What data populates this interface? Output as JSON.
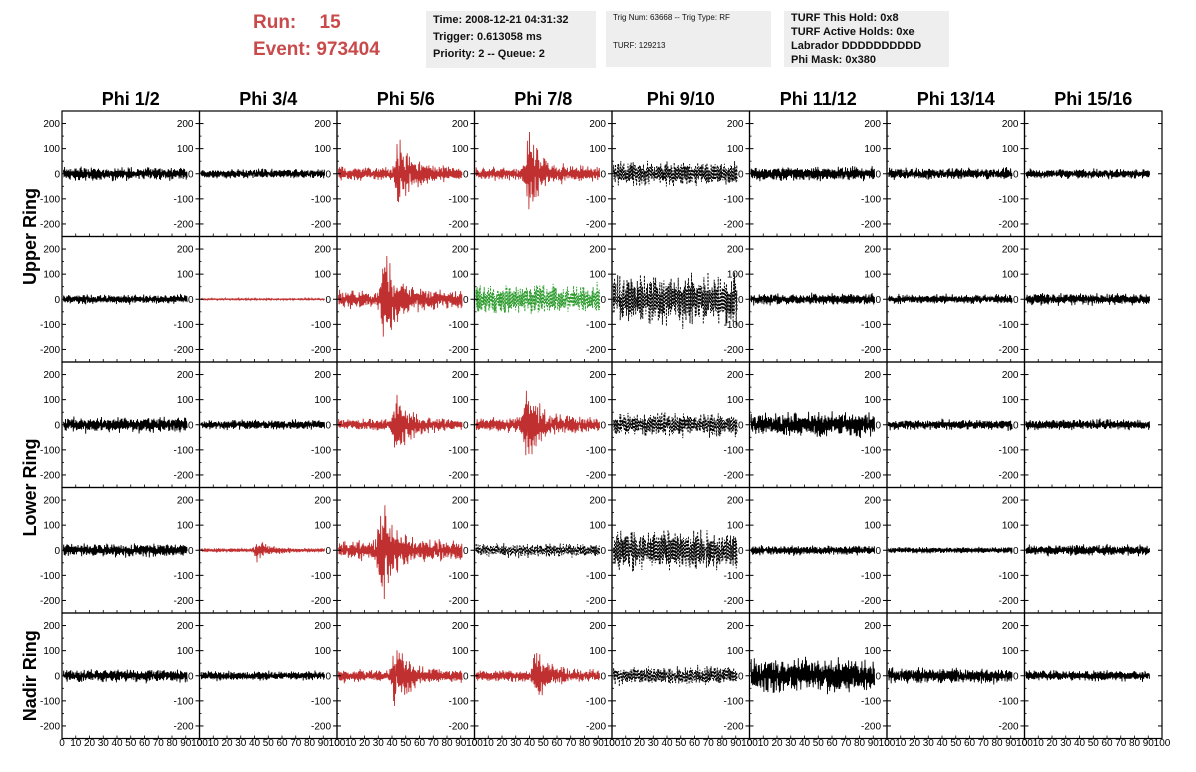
{
  "header": {
    "run_label": "Run:",
    "run_value": "15",
    "event_label": "Event:",
    "event_value": "973404",
    "time": "Time: 2008-12-21 04:31:32",
    "trigger": "Trigger: 0.613058 ms",
    "priority": "Priority: 2 -- Queue: 2",
    "trig_num": "Trig Num: 63668 -- Trig Type: RF",
    "turf": "TURF: 129213",
    "turf_this_hold": "TURF This Hold: 0x8",
    "turf_active_holds": "TURF Active Holds: 0xe",
    "labrador": "Labrador DDDDDDDDDD",
    "phi_mask": "Phi Mask: 0x380"
  },
  "colors": {
    "black": "#000000",
    "red": "#c03030",
    "green": "#2a9a2a",
    "title_red": "#c84a4a"
  },
  "chart_data": {
    "type": "line",
    "columns": [
      "Phi 1/2",
      "Phi 3/4",
      "Phi 5/6",
      "Phi 7/8",
      "Phi 9/10",
      "Phi 11/12",
      "Phi 13/14",
      "Phi 15/16"
    ],
    "ring_labels": [
      "Upper Ring",
      "Lower Ring",
      "Nadir Ring"
    ],
    "rows": 5,
    "ytick_labels": [
      "200",
      "100",
      "0",
      "-100",
      "-200"
    ],
    "xtick_labels": [
      "0",
      "10",
      "20",
      "30",
      "40",
      "50",
      "60",
      "70",
      "80",
      "90",
      "100"
    ],
    "xlim": [
      0,
      100
    ],
    "ylim": [
      -250,
      250
    ],
    "grid": false,
    "panels": [
      [
        {
          "style": "black",
          "amp": 25,
          "env": "noise"
        },
        {
          "style": "black",
          "amp": 18,
          "env": "noise"
        },
        {
          "style": "red",
          "amp": 130,
          "env": "burst",
          "peak": 45
        },
        {
          "style": "red",
          "amp": 130,
          "env": "burst",
          "peak": 40
        },
        {
          "style": "dashed",
          "amp": 45,
          "env": "noise"
        },
        {
          "style": "black",
          "amp": 28,
          "env": "noise"
        },
        {
          "style": "black",
          "amp": 22,
          "env": "noise"
        },
        {
          "style": "black",
          "amp": 18,
          "env": "noise"
        }
      ],
      [
        {
          "style": "black",
          "amp": 18,
          "env": "noise"
        },
        {
          "style": "red",
          "amp": 3,
          "env": "flat"
        },
        {
          "style": "red",
          "amp": 170,
          "env": "burst",
          "peak": 35
        },
        {
          "style": "green",
          "amp": 55,
          "env": "noise"
        },
        {
          "style": "dashed",
          "amp": 95,
          "env": "noise"
        },
        {
          "style": "black",
          "amp": 22,
          "env": "noise"
        },
        {
          "style": "black",
          "amp": 18,
          "env": "noise"
        },
        {
          "style": "black",
          "amp": 22,
          "env": "noise"
        }
      ],
      [
        {
          "style": "black",
          "amp": 28,
          "env": "noise"
        },
        {
          "style": "black",
          "amp": 18,
          "env": "noise"
        },
        {
          "style": "red",
          "amp": 110,
          "env": "burst",
          "peak": 43
        },
        {
          "style": "red",
          "amp": 140,
          "env": "burst",
          "peak": 38
        },
        {
          "style": "dashed",
          "amp": 45,
          "env": "noise"
        },
        {
          "style": "black",
          "amp": 45,
          "env": "noise"
        },
        {
          "style": "black",
          "amp": 20,
          "env": "noise"
        },
        {
          "style": "black",
          "amp": 20,
          "env": "noise"
        }
      ],
      [
        {
          "style": "black",
          "amp": 25,
          "env": "noise"
        },
        {
          "style": "red",
          "amp": 35,
          "env": "burst",
          "peak": 42
        },
        {
          "style": "red",
          "amp": 190,
          "env": "burst",
          "peak": 32
        },
        {
          "style": "dashed",
          "amp": 25,
          "env": "noise"
        },
        {
          "style": "dashed",
          "amp": 75,
          "env": "noise"
        },
        {
          "style": "black",
          "amp": 18,
          "env": "noise"
        },
        {
          "style": "black",
          "amp": 12,
          "env": "noise"
        },
        {
          "style": "black",
          "amp": 22,
          "env": "noise"
        }
      ],
      [
        {
          "style": "black",
          "amp": 25,
          "env": "noise"
        },
        {
          "style": "black",
          "amp": 18,
          "env": "noise"
        },
        {
          "style": "red",
          "amp": 120,
          "env": "burst",
          "peak": 43
        },
        {
          "style": "red",
          "amp": 110,
          "env": "burst",
          "peak": 45
        },
        {
          "style": "dashed",
          "amp": 35,
          "env": "noise"
        },
        {
          "style": "black",
          "amp": 65,
          "env": "noise"
        },
        {
          "style": "black",
          "amp": 30,
          "env": "noise"
        },
        {
          "style": "black",
          "amp": 20,
          "env": "noise"
        }
      ]
    ]
  }
}
